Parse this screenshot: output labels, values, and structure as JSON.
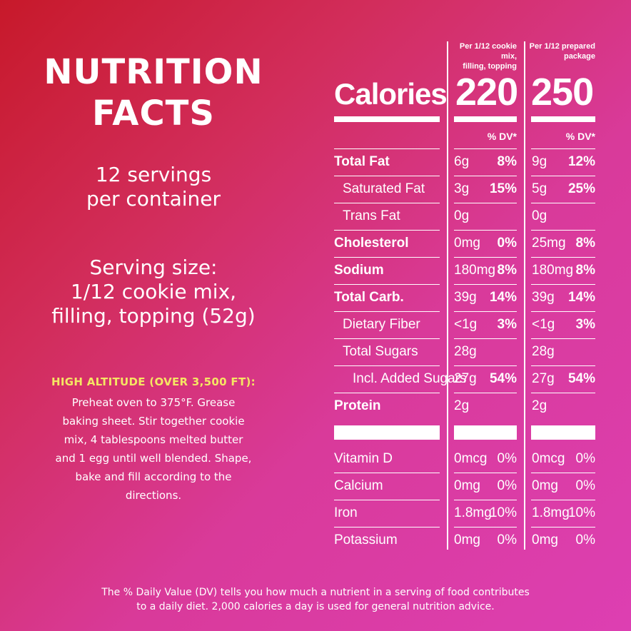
{
  "title_line1": "NUTRITION",
  "title_line2": "FACTS",
  "servings_line1": "12 servings",
  "servings_line2": "per container",
  "serving_size_line1": "Serving size:",
  "serving_size_line2": "1/12 cookie mix,",
  "serving_size_line3": "filling, topping (52g)",
  "high_altitude": {
    "heading": "HIGH ALTITUDE (OVER 3,500 FT):",
    "lines": [
      "Preheat oven to 375°F. Grease",
      "baking sheet. Stir together cookie",
      "mix, 4 tablespoons melted butter",
      "and 1 egg until well blended. Shape,",
      "bake and fill according to the",
      "directions."
    ]
  },
  "columns": [
    {
      "header_line1": "Per 1/12 cookie mix,",
      "header_line2": "filling, topping",
      "calories": "220"
    },
    {
      "header_line1": "Per 1/12 prepared",
      "header_line2": "package",
      "calories": "250"
    }
  ],
  "calories_label": "Calories",
  "dv_label": "% DV*",
  "nutrients": [
    {
      "name": "Total Fat",
      "bold": true,
      "indent": 0,
      "c1_amt": "6g",
      "c1_dv": "8%",
      "c2_amt": "9g",
      "c2_dv": "12%"
    },
    {
      "name": "Saturated Fat",
      "bold": false,
      "indent": 1,
      "c1_amt": "3g",
      "c1_dv": "15%",
      "c2_amt": "5g",
      "c2_dv": "25%"
    },
    {
      "name": "Trans Fat",
      "bold": false,
      "indent": 1,
      "c1_amt": "0g",
      "c1_dv": "",
      "c2_amt": "0g",
      "c2_dv": ""
    },
    {
      "name": "Cholesterol",
      "bold": true,
      "indent": 0,
      "c1_amt": "0mg",
      "c1_dv": "0%",
      "c2_amt": "25mg",
      "c2_dv": "8%"
    },
    {
      "name": "Sodium",
      "bold": true,
      "indent": 0,
      "c1_amt": "180mg",
      "c1_dv": "8%",
      "c2_amt": "180mg",
      "c2_dv": "8%"
    },
    {
      "name": "Total Carb.",
      "bold": true,
      "indent": 0,
      "c1_amt": "39g",
      "c1_dv": "14%",
      "c2_amt": "39g",
      "c2_dv": "14%"
    },
    {
      "name": "Dietary Fiber",
      "bold": false,
      "indent": 1,
      "c1_amt": "<1g",
      "c1_dv": "3%",
      "c2_amt": "<1g",
      "c2_dv": "3%"
    },
    {
      "name": "Total Sugars",
      "bold": false,
      "indent": 1,
      "c1_amt": "28g",
      "c1_dv": "",
      "c2_amt": "28g",
      "c2_dv": ""
    },
    {
      "name": "Incl. Added Sugars",
      "bold": false,
      "indent": 2,
      "c1_amt": "27g",
      "c1_dv": "54%",
      "c2_amt": "27g",
      "c2_dv": "54%"
    },
    {
      "name": "Protein",
      "bold": true,
      "indent": 0,
      "c1_amt": "2g",
      "c1_dv": "",
      "c2_amt": "2g",
      "c2_dv": ""
    }
  ],
  "vitamins": [
    {
      "name": "Vitamin D",
      "c1_amt": "0mcg",
      "c1_dv": "0%",
      "c2_amt": "0mcg",
      "c2_dv": "0%"
    },
    {
      "name": "Calcium",
      "c1_amt": "0mg",
      "c1_dv": "0%",
      "c2_amt": "0mg",
      "c2_dv": "0%"
    },
    {
      "name": "Iron",
      "c1_amt": "1.8mg",
      "c1_dv": "10%",
      "c2_amt": "1.8mg",
      "c2_dv": "10%"
    },
    {
      "name": "Potassium",
      "c1_amt": "0mg",
      "c1_dv": "0%",
      "c2_amt": "0mg",
      "c2_dv": "0%"
    }
  ],
  "footer_line1": "The % Daily Value (DV) tells you how much a nutrient in a serving of food contributes",
  "footer_line2": "to a daily diet. 2,000 calories a day is used for general nutrition advice."
}
